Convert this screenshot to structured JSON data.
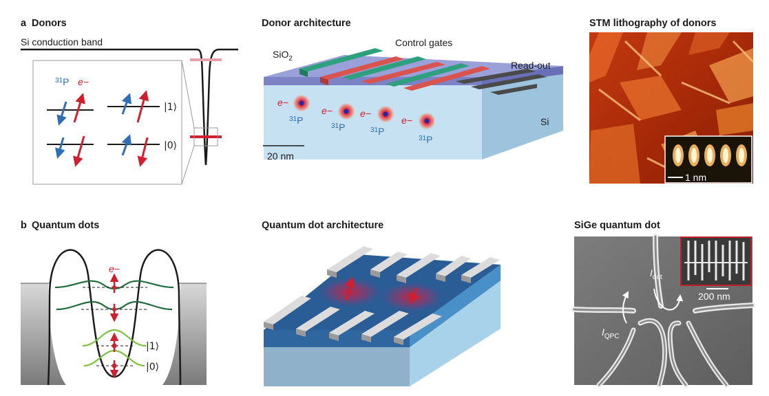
{
  "panels": {
    "donors": {
      "letter": "a",
      "title": "Donors",
      "band_label": "Si conduction band",
      "nucleus_label": "31P",
      "electron_label": "e−",
      "state_one": "|1⟩",
      "state_zero": "|0⟩"
    },
    "donor_architecture": {
      "title": "Donor architecture",
      "oxide_label": "SiO2",
      "control_gates_label": "Control gates",
      "readout_label": "Read-out",
      "substrate_label": "Si",
      "electron_label": "e−",
      "nucleus_label": "31P",
      "scale_label": "20 nm"
    },
    "stm": {
      "title": "STM lithography of donors",
      "scale_label": "1 nm"
    },
    "quantum_dots": {
      "letter": "b",
      "title": "Quantum dots",
      "electron_label": "e−",
      "state_one": "|1⟩",
      "state_zero": "|0⟩"
    },
    "qd_architecture": {
      "title": "Quantum dot architecture"
    },
    "sige": {
      "title": "SiGe quantum dot",
      "idot_label": "I",
      "idot_sub": "dot",
      "iqpc_label": "I",
      "iqpc_sub": "QPC",
      "scale_label": "200 nm"
    }
  },
  "colors": {
    "spin_blue": "#2f6db5",
    "spin_red": "#d0202f",
    "gate_green": "#2fa07d",
    "gate_red": "#d9534f",
    "gate_gray": "#4a4a4a",
    "oxide": "#8a8fc8",
    "silicon": "#c6e2f2",
    "dark_wave": "#1f6b3a",
    "light_wave": "#7dc142"
  }
}
